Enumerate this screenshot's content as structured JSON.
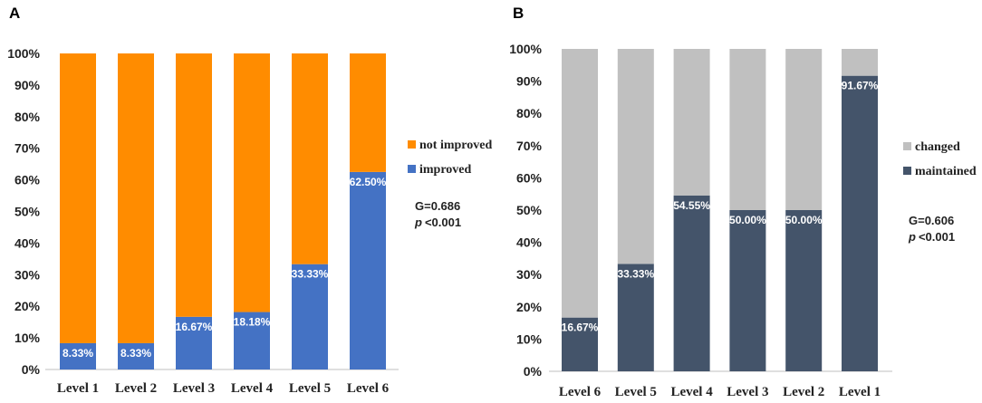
{
  "chart_data": [
    {
      "type": "bar",
      "stacked": true,
      "panel_label": "A",
      "categories": [
        "Level 1",
        "Level 2",
        "Level 3",
        "Level 4",
        "Level 5",
        "Level 6"
      ],
      "series": [
        {
          "name": "improved",
          "values": [
            8.33,
            8.33,
            16.67,
            18.18,
            33.33,
            62.5
          ],
          "color": "#4472C4"
        },
        {
          "name": "not improved",
          "values": [
            91.67,
            91.67,
            83.33,
            81.82,
            66.67,
            37.5
          ],
          "color": "#FF8C00"
        }
      ],
      "data_labels": [
        "8.33%",
        "8.33%",
        "16.67%",
        "18.18%",
        "33.33%",
        "62.50%"
      ],
      "legend": [
        "not improved",
        "improved"
      ],
      "yticks": [
        "0%",
        "10%",
        "20%",
        "30%",
        "40%",
        "50%",
        "60%",
        "70%",
        "80%",
        "90%",
        "100%"
      ],
      "ylim": [
        0,
        100
      ],
      "stat_g": "G=0.686",
      "stat_p_symbol": "p",
      "stat_p_value": "<0.001"
    },
    {
      "type": "bar",
      "stacked": true,
      "panel_label": "B",
      "categories": [
        "Level 6",
        "Level 5",
        "Level 4",
        "Level 3",
        "Level 2",
        "Level 1"
      ],
      "series": [
        {
          "name": "maintained",
          "values": [
            16.67,
            33.33,
            54.55,
            50.0,
            50.0,
            91.67
          ],
          "color": "#44546A"
        },
        {
          "name": "changed",
          "values": [
            83.33,
            66.67,
            45.45,
            50.0,
            50.0,
            8.33
          ],
          "color": "#C0C0C0"
        }
      ],
      "data_labels": [
        "16.67%",
        "33.33%",
        "54.55%",
        "50.00%",
        "50.00%",
        "91.67%"
      ],
      "legend": [
        "changed",
        "maintained"
      ],
      "yticks": [
        "0%",
        "10%",
        "20%",
        "30%",
        "40%",
        "50%",
        "60%",
        "70%",
        "80%",
        "90%",
        "100%"
      ],
      "ylim": [
        0,
        100
      ],
      "stat_g": "G=0.606",
      "stat_p_symbol": "p",
      "stat_p_value": "<0.001"
    }
  ]
}
